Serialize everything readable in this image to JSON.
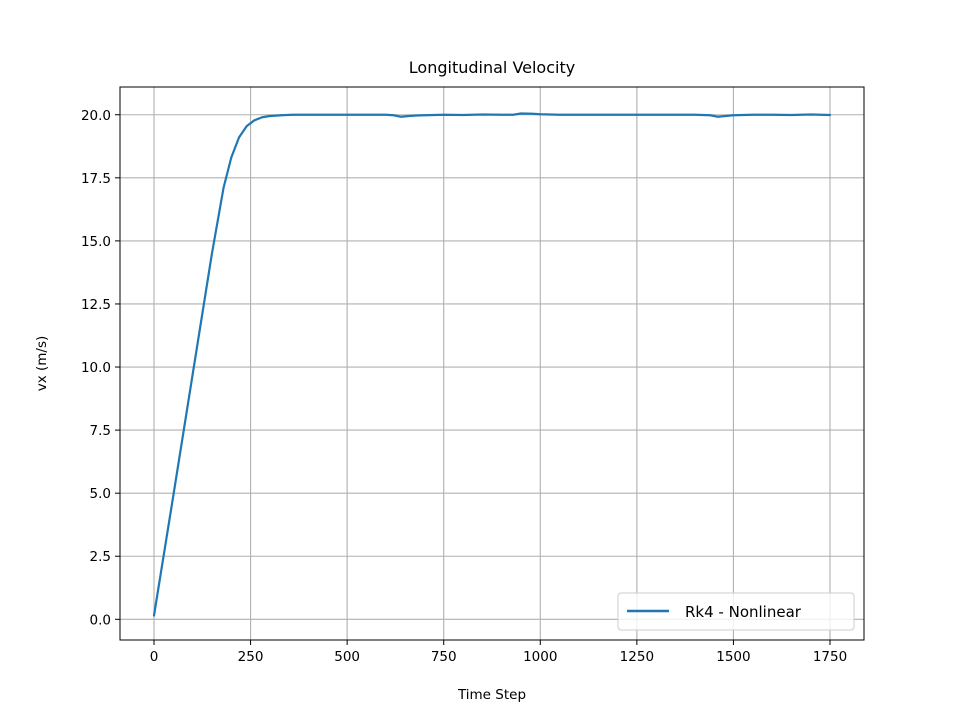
{
  "chart_data": {
    "type": "line",
    "title": "Longitudinal Velocity",
    "xlabel": "Time Step",
    "ylabel": "vx (m/s)",
    "xlim": [
      -88,
      1838
    ],
    "ylim": [
      -0.82,
      21.1
    ],
    "xticks": [
      0,
      250,
      500,
      750,
      1000,
      1250,
      1500,
      1750
    ],
    "xtick_labels": [
      "0",
      "250",
      "500",
      "750",
      "1000",
      "1250",
      "1500",
      "1750"
    ],
    "yticks": [
      0.0,
      2.5,
      5.0,
      7.5,
      10.0,
      12.5,
      15.0,
      17.5,
      20.0
    ],
    "ytick_labels": [
      "0.0",
      "2.5",
      "5.0",
      "7.5",
      "10.0",
      "12.5",
      "15.0",
      "17.5",
      "20.0"
    ],
    "grid": true,
    "legend_position": "lower-right",
    "series": [
      {
        "name": "Rk4 - Nonlinear",
        "color": "#1f77b4",
        "x": [
          0,
          50,
          100,
          150,
          180,
          200,
          220,
          240,
          260,
          280,
          300,
          330,
          360,
          400,
          450,
          500,
          550,
          600,
          620,
          640,
          660,
          680,
          700,
          750,
          800,
          850,
          900,
          930,
          950,
          980,
          1000,
          1050,
          1100,
          1200,
          1300,
          1400,
          1440,
          1460,
          1480,
          1500,
          1550,
          1600,
          1650,
          1700,
          1750
        ],
        "y": [
          0.15,
          4.9,
          9.7,
          14.5,
          17.1,
          18.3,
          19.1,
          19.55,
          19.78,
          19.9,
          19.95,
          19.98,
          20.0,
          20.0,
          20.0,
          20.0,
          20.0,
          20.0,
          19.98,
          19.92,
          19.95,
          19.97,
          19.98,
          20.0,
          19.99,
          20.01,
          20.0,
          20.0,
          20.05,
          20.04,
          20.02,
          20.0,
          20.0,
          20.0,
          20.0,
          20.0,
          19.98,
          19.92,
          19.95,
          19.98,
          20.0,
          20.0,
          19.99,
          20.01,
          19.99
        ]
      }
    ]
  }
}
